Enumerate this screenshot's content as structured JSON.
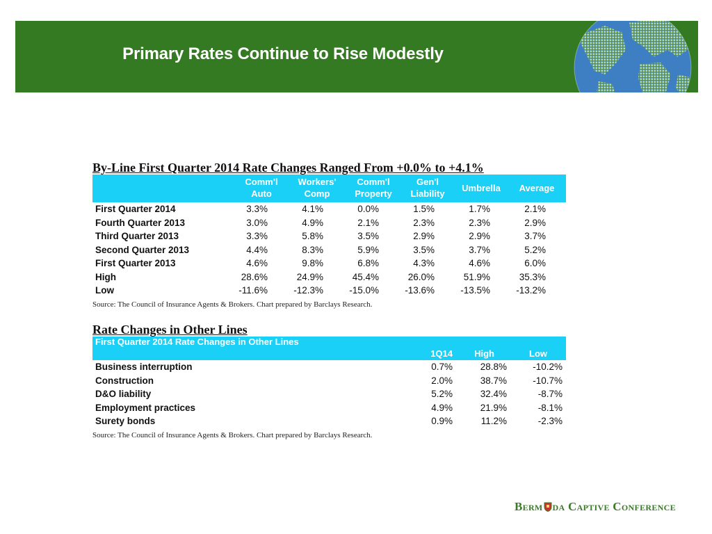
{
  "slide": {
    "title": "Primary Rates Continue to Rise Modestly",
    "brand_color": "#347a22",
    "accent_color": "#1bd0f7"
  },
  "table1": {
    "title": "By-Line First Quarter 2014 Rate Changes Ranged From +0.0% to +4.1%",
    "headers": [
      [
        "Comm'l",
        "Auto"
      ],
      [
        "Workers'",
        "Comp"
      ],
      [
        "Comm'l",
        "Property"
      ],
      [
        "Gen'l",
        "Liability"
      ],
      [
        "Umbrella"
      ],
      [
        "Average"
      ]
    ],
    "rows": [
      {
        "label": "First Quarter 2014",
        "values": [
          "3.3%",
          "4.1%",
          "0.0%",
          "1.5%",
          "1.7%",
          "2.1%"
        ]
      },
      {
        "label": "Fourth Quarter 2013",
        "values": [
          "3.0%",
          "4.9%",
          "2.1%",
          "2.3%",
          "2.3%",
          "2.9%"
        ]
      },
      {
        "label": "Third Quarter 2013",
        "values": [
          "3.3%",
          "5.8%",
          "3.5%",
          "2.9%",
          "2.9%",
          "3.7%"
        ]
      },
      {
        "label": "Second Quarter 2013",
        "values": [
          "4.4%",
          "8.3%",
          "5.9%",
          "3.5%",
          "3.7%",
          "5.2%"
        ]
      },
      {
        "label": "First Quarter 2013",
        "values": [
          "4.6%",
          "9.8%",
          "6.8%",
          "4.3%",
          "4.6%",
          "6.0%"
        ]
      },
      {
        "label": "High",
        "values": [
          "28.6%",
          "24.9%",
          "45.4%",
          "26.0%",
          "51.9%",
          "35.3%"
        ]
      },
      {
        "label": "Low",
        "values": [
          "-11.6%",
          "-12.3%",
          "-15.0%",
          "-13.6%",
          "-13.5%",
          "-13.2%"
        ]
      }
    ],
    "source": "Source: The Council of Insurance Agents & Brokers. Chart prepared by Barclays Research."
  },
  "table2": {
    "title": "Rate Changes in Other Lines",
    "subtitle": "First Quarter 2014 Rate Changes in Other Lines",
    "headers": [
      "1Q14",
      "High",
      "Low"
    ],
    "rows": [
      {
        "label": "Business interruption",
        "values": [
          "0.7%",
          "28.8%",
          "-10.2%"
        ]
      },
      {
        "label": "Construction",
        "values": [
          "2.0%",
          "38.7%",
          "-10.7%"
        ]
      },
      {
        "label": "D&O liability",
        "values": [
          "5.2%",
          "32.4%",
          "-8.7%"
        ]
      },
      {
        "label": "Employment practices",
        "values": [
          "4.9%",
          "21.9%",
          "-8.1%"
        ]
      },
      {
        "label": "Surety bonds",
        "values": [
          "0.9%",
          "11.2%",
          "-2.3%"
        ]
      }
    ],
    "source": "Source: The Council of Insurance Agents & Brokers. Chart prepared by Barclays Research."
  },
  "footer": {
    "logo_left": "Berm",
    "logo_right": "da Captive Conference"
  }
}
